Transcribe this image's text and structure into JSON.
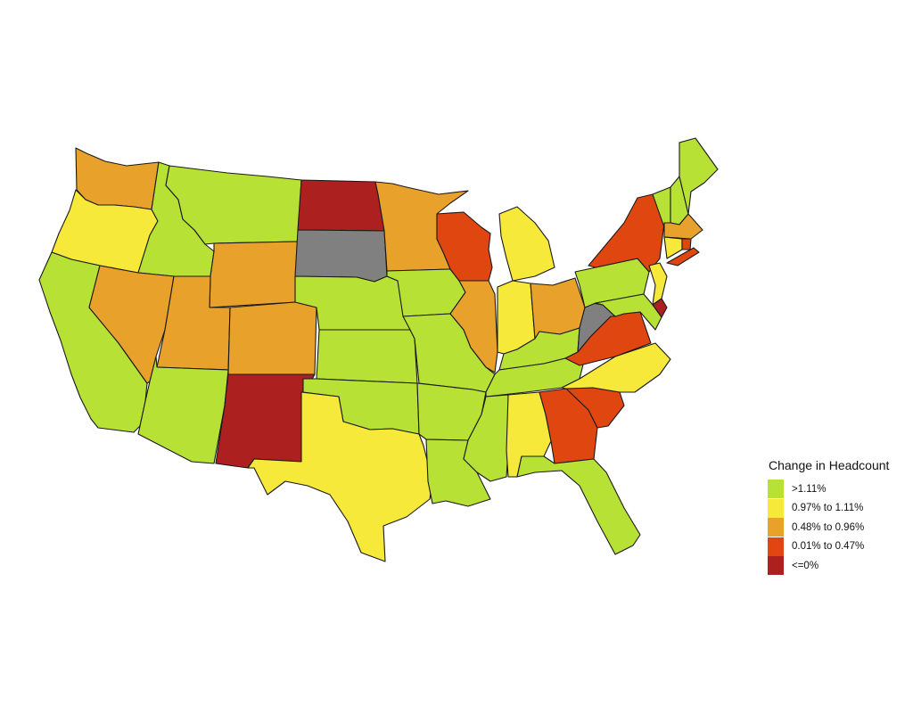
{
  "legend": {
    "title": "Change in Headcount",
    "items": [
      {
        "label": ">1.11%",
        "color": "#b8e136",
        "key": "g"
      },
      {
        "label": "0.97% to 1.11%",
        "color": "#f7e93a",
        "key": "y"
      },
      {
        "label": "0.48% to 0.96%",
        "color": "#e8a22c",
        "key": "o"
      },
      {
        "label": "0.01% to 0.47%",
        "color": "#e04610",
        "key": "r"
      },
      {
        "label": "<=0%",
        "color": "#ad2020",
        "key": "d"
      }
    ]
  },
  "no_data_color": "#808080",
  "states": [
    {
      "code": "WA",
      "name": "Washington",
      "category": "o"
    },
    {
      "code": "OR",
      "name": "Oregon",
      "category": "y"
    },
    {
      "code": "CA",
      "name": "California",
      "category": "g"
    },
    {
      "code": "ID",
      "name": "Idaho",
      "category": "g"
    },
    {
      "code": "NV",
      "name": "Nevada",
      "category": "o"
    },
    {
      "code": "MT",
      "name": "Montana",
      "category": "g"
    },
    {
      "code": "WY",
      "name": "Wyoming",
      "category": "o"
    },
    {
      "code": "UT",
      "name": "Utah",
      "category": "o"
    },
    {
      "code": "AZ",
      "name": "Arizona",
      "category": "g"
    },
    {
      "code": "CO",
      "name": "Colorado",
      "category": "o"
    },
    {
      "code": "NM",
      "name": "New Mexico",
      "category": "d"
    },
    {
      "code": "ND",
      "name": "North Dakota",
      "category": "d"
    },
    {
      "code": "SD",
      "name": "South Dakota",
      "category": "nodata"
    },
    {
      "code": "NE",
      "name": "Nebraska",
      "category": "g"
    },
    {
      "code": "KS",
      "name": "Kansas",
      "category": "g"
    },
    {
      "code": "OK",
      "name": "Oklahoma",
      "category": "g"
    },
    {
      "code": "TX",
      "name": "Texas",
      "category": "y"
    },
    {
      "code": "MN",
      "name": "Minnesota",
      "category": "o"
    },
    {
      "code": "IA",
      "name": "Iowa",
      "category": "g"
    },
    {
      "code": "MO",
      "name": "Missouri",
      "category": "g"
    },
    {
      "code": "AR",
      "name": "Arkansas",
      "category": "g"
    },
    {
      "code": "LA",
      "name": "Louisiana",
      "category": "g"
    },
    {
      "code": "WI",
      "name": "Wisconsin",
      "category": "r"
    },
    {
      "code": "IL",
      "name": "Illinois",
      "category": "o"
    },
    {
      "code": "MI",
      "name": "Michigan",
      "category": "y"
    },
    {
      "code": "IN",
      "name": "Indiana",
      "category": "y"
    },
    {
      "code": "OH",
      "name": "Ohio",
      "category": "o"
    },
    {
      "code": "KY",
      "name": "Kentucky",
      "category": "g"
    },
    {
      "code": "TN",
      "name": "Tennessee",
      "category": "g"
    },
    {
      "code": "MS",
      "name": "Mississippi",
      "category": "g"
    },
    {
      "code": "AL",
      "name": "Alabama",
      "category": "y"
    },
    {
      "code": "GA",
      "name": "Georgia",
      "category": "r"
    },
    {
      "code": "FL",
      "name": "Florida",
      "category": "g"
    },
    {
      "code": "SC",
      "name": "South Carolina",
      "category": "r"
    },
    {
      "code": "NC",
      "name": "North Carolina",
      "category": "y"
    },
    {
      "code": "VA",
      "name": "Virginia",
      "category": "r"
    },
    {
      "code": "WV",
      "name": "West Virginia",
      "category": "nodata"
    },
    {
      "code": "PA",
      "name": "Pennsylvania",
      "category": "g"
    },
    {
      "code": "NY",
      "name": "New York",
      "category": "r"
    },
    {
      "code": "NJ",
      "name": "New Jersey",
      "category": "y"
    },
    {
      "code": "DE",
      "name": "Delaware",
      "category": "d"
    },
    {
      "code": "MD",
      "name": "Maryland",
      "category": "g"
    },
    {
      "code": "VT",
      "name": "Vermont",
      "category": "g"
    },
    {
      "code": "NH",
      "name": "New Hampshire",
      "category": "g"
    },
    {
      "code": "ME",
      "name": "Maine",
      "category": "g"
    },
    {
      "code": "MA",
      "name": "Massachusetts",
      "category": "o"
    },
    {
      "code": "CT",
      "name": "Connecticut",
      "category": "y"
    },
    {
      "code": "RI",
      "name": "Rhode Island",
      "category": "r"
    },
    {
      "code": "LI",
      "name": "Long Island (NY)",
      "category": "r"
    }
  ]
}
